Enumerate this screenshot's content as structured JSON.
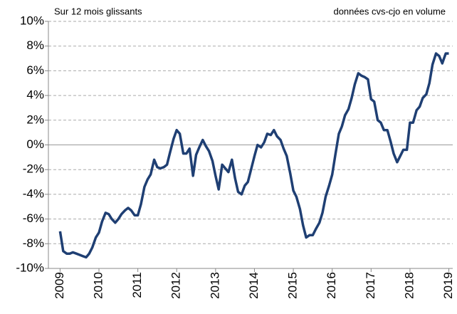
{
  "chart_data": {
    "type": "line",
    "annotations": [
      "Sur 12 mois glissants",
      "données cvs-cjo en volume"
    ],
    "x": [
      2009.0,
      2009.08,
      2009.17,
      2009.25,
      2009.33,
      2009.42,
      2009.5,
      2009.58,
      2009.67,
      2009.75,
      2009.83,
      2009.92,
      2010.0,
      2010.08,
      2010.17,
      2010.25,
      2010.33,
      2010.42,
      2010.5,
      2010.58,
      2010.67,
      2010.75,
      2010.83,
      2010.92,
      2011.0,
      2011.08,
      2011.17,
      2011.25,
      2011.33,
      2011.42,
      2011.5,
      2011.58,
      2011.67,
      2011.75,
      2011.83,
      2011.92,
      2012.0,
      2012.08,
      2012.17,
      2012.25,
      2012.33,
      2012.42,
      2012.5,
      2012.58,
      2012.67,
      2012.75,
      2012.83,
      2012.92,
      2013.0,
      2013.08,
      2013.17,
      2013.25,
      2013.33,
      2013.42,
      2013.5,
      2013.58,
      2013.67,
      2013.75,
      2013.83,
      2013.92,
      2014.0,
      2014.08,
      2014.17,
      2014.25,
      2014.33,
      2014.42,
      2014.5,
      2014.58,
      2014.67,
      2014.75,
      2014.83,
      2014.92,
      2015.0,
      2015.08,
      2015.17,
      2015.25,
      2015.33,
      2015.42,
      2015.5,
      2015.58,
      2015.67,
      2015.75,
      2015.83,
      2015.92,
      2016.0,
      2016.08,
      2016.17,
      2016.25,
      2016.33,
      2016.42,
      2016.5,
      2016.58,
      2016.67,
      2016.75,
      2016.83,
      2016.92,
      2017.0,
      2017.08,
      2017.17,
      2017.25,
      2017.33,
      2017.42,
      2017.5,
      2017.58,
      2017.67,
      2017.75,
      2017.83,
      2017.92,
      2018.0,
      2018.08,
      2018.17,
      2018.25,
      2018.33,
      2018.42,
      2018.5,
      2018.58,
      2018.67,
      2018.75,
      2018.83,
      2018.92,
      2019.0
    ],
    "series": [
      {
        "color": "#1f3f73",
        "values": [
          -7.0,
          -8.6,
          -8.8,
          -8.8,
          -8.7,
          -8.8,
          -8.9,
          -9.0,
          -9.1,
          -8.8,
          -8.3,
          -7.5,
          -7.1,
          -6.2,
          -5.5,
          -5.6,
          -6.0,
          -6.3,
          -6.0,
          -5.6,
          -5.3,
          -5.1,
          -5.3,
          -5.7,
          -5.7,
          -4.8,
          -3.4,
          -2.8,
          -2.4,
          -1.2,
          -1.8,
          -1.9,
          -1.8,
          -1.6,
          -0.6,
          0.5,
          1.2,
          0.9,
          -0.7,
          -0.7,
          -0.3,
          -2.5,
          -0.8,
          -0.2,
          0.4,
          -0.1,
          -0.5,
          -1.3,
          -2.5,
          -3.6,
          -1.6,
          -1.9,
          -2.2,
          -1.2,
          -2.7,
          -3.8,
          -4.0,
          -3.3,
          -3.0,
          -1.9,
          -0.9,
          0.0,
          -0.2,
          0.2,
          0.9,
          0.8,
          1.2,
          0.7,
          0.4,
          -0.3,
          -0.9,
          -2.3,
          -3.7,
          -4.2,
          -5.2,
          -6.5,
          -7.5,
          -7.3,
          -7.3,
          -6.8,
          -6.3,
          -5.5,
          -4.2,
          -3.3,
          -2.4,
          -0.8,
          0.9,
          1.5,
          2.4,
          2.9,
          3.8,
          4.9,
          5.8,
          5.6,
          5.5,
          5.3,
          3.7,
          3.5,
          2.0,
          1.8,
          1.2,
          1.2,
          0.3,
          -0.7,
          -1.4,
          -0.9,
          -0.4,
          -0.4,
          1.8,
          1.8,
          2.8,
          3.1,
          3.8,
          4.1,
          5.0,
          6.5,
          7.4,
          7.2,
          6.6,
          7.4,
          7.4
        ]
      }
    ],
    "xlim": [
      2008.7,
      2019.1
    ],
    "xticks": [
      2009,
      2010,
      2011,
      2012,
      2013,
      2014,
      2015,
      2016,
      2017,
      2018,
      2019
    ],
    "ylim": [
      -10,
      10
    ],
    "yticks": [
      {
        "value": -10,
        "label": "-10%"
      },
      {
        "value": -8,
        "label": "-8%"
      },
      {
        "value": -6,
        "label": "-6%"
      },
      {
        "value": -4,
        "label": "-4%"
      },
      {
        "value": -2,
        "label": "-2%"
      },
      {
        "value": 0,
        "label": "0%"
      },
      {
        "value": 2,
        "label": "2%"
      },
      {
        "value": 4,
        "label": "4%"
      },
      {
        "value": 6,
        "label": "6%"
      },
      {
        "value": 8,
        "label": "8%"
      },
      {
        "value": 10,
        "label": "10%"
      }
    ],
    "grid": true
  }
}
